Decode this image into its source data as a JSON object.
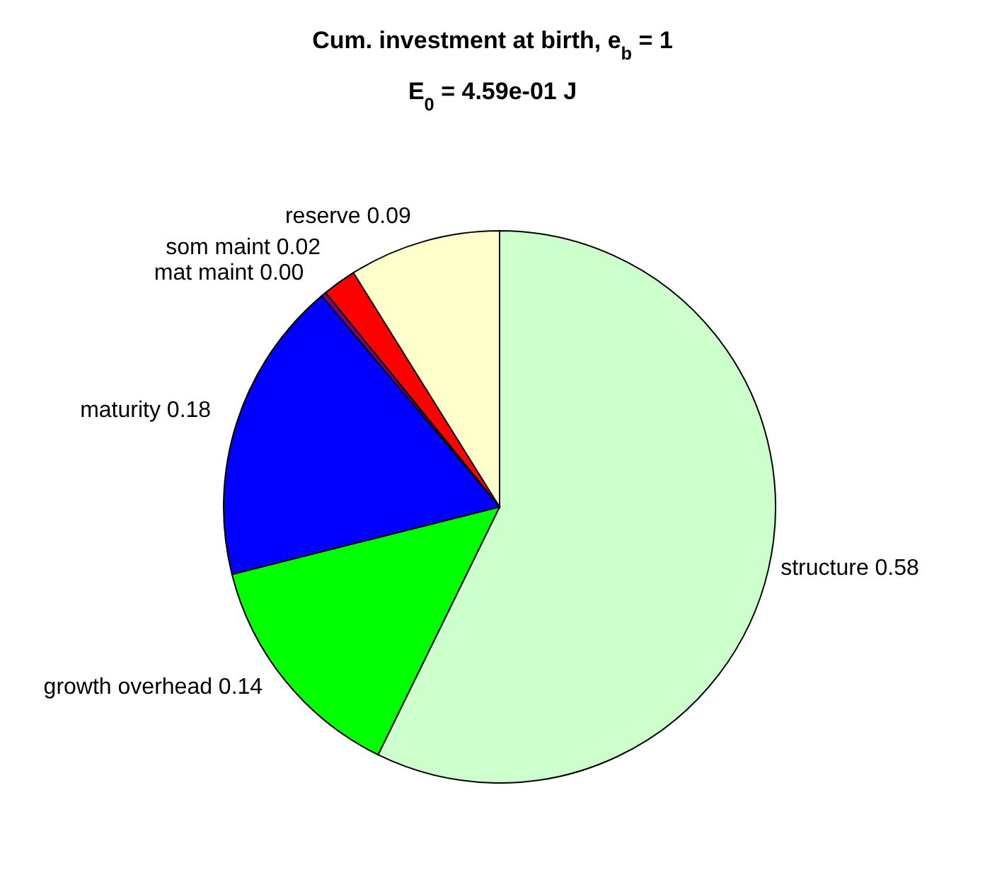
{
  "chart_data": {
    "type": "pie",
    "title": "Cum. investment at birth, e$_{b}$ = 1",
    "subtitle": "E$_{0}$ = 4.59e-01 J",
    "categories": [
      "structure",
      "growth overhead",
      "maturity",
      "mat maint",
      "som maint",
      "reserve"
    ],
    "values": [
      0.58,
      0.14,
      0.18,
      0.003,
      0.02,
      0.09
    ],
    "value_labels": [
      "0.58",
      "0.14",
      "0.18",
      "0.00",
      "0.02",
      "0.09"
    ],
    "colors": [
      "#ccffcc",
      "#00ff00",
      "#0000ff",
      "#800080",
      "#ff0000",
      "#ffffcc"
    ]
  }
}
